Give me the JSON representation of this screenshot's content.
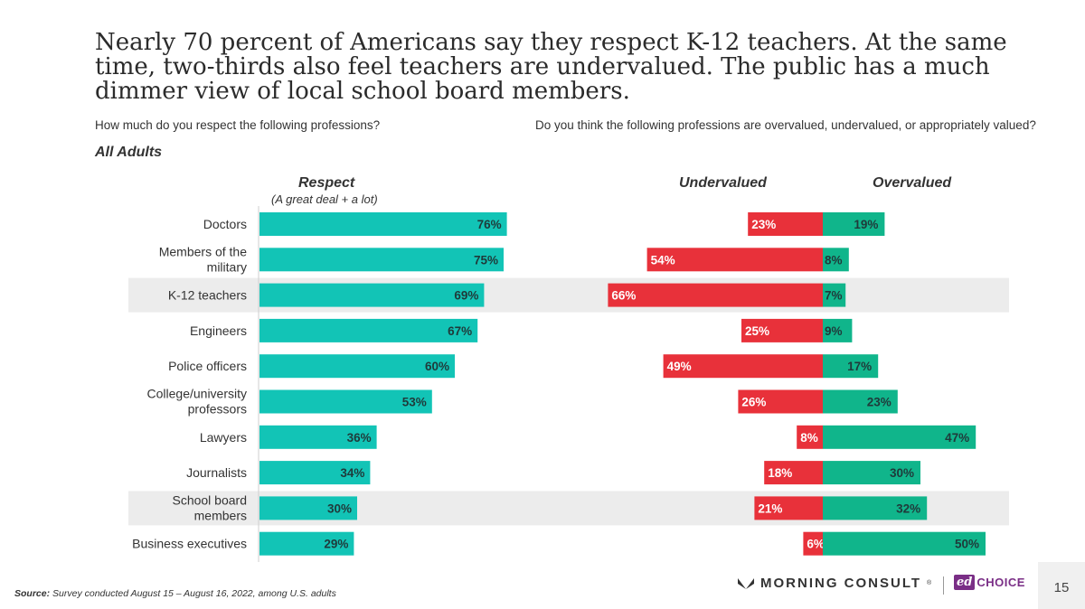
{
  "header": {
    "title": "Nearly 70 percent of Americans say they respect K-12 teachers. At the same time, two-thirds also feel teachers are undervalued. The public has a much dimmer view of local school board members.",
    "question_left": "How much do you respect the following professions?",
    "question_right": "Do you think the following professions are overvalued, undervalued, or appropriately valued?",
    "subgroup": "All Adults"
  },
  "chart_data": {
    "type": "bar",
    "categories": [
      "Doctors",
      "Members of the military",
      "K-12 teachers",
      "Engineers",
      "Police officers",
      "College/university professors",
      "Lawyers",
      "Journalists",
      "School board members",
      "Business executives"
    ],
    "category_lines": [
      [
        "Doctors"
      ],
      [
        "Members of the",
        "military"
      ],
      [
        "K-12 teachers"
      ],
      [
        "Engineers"
      ],
      [
        "Police officers"
      ],
      [
        "College/university",
        "professors"
      ],
      [
        "Lawyers"
      ],
      [
        "Journalists"
      ],
      [
        "School board",
        "members"
      ],
      [
        "Business executives"
      ]
    ],
    "highlighted": [
      false,
      false,
      true,
      false,
      false,
      false,
      false,
      false,
      true,
      false
    ],
    "series": [
      {
        "name": "Respect",
        "subtitle": "(A great deal + a lot)",
        "color": "#12c4b6",
        "values": [
          76,
          75,
          69,
          67,
          60,
          53,
          36,
          34,
          30,
          29
        ]
      },
      {
        "name": "Undervalued",
        "color": "#e8313a",
        "values": [
          23,
          54,
          66,
          25,
          49,
          26,
          8,
          18,
          21,
          6
        ]
      },
      {
        "name": "Overvalued",
        "color": "#10b58b",
        "values": [
          19,
          8,
          7,
          9,
          17,
          23,
          47,
          30,
          32,
          50
        ]
      }
    ],
    "unit": "%"
  },
  "footer": {
    "source_label": "Source:",
    "source_text": " Survey conducted August 15 – August 16, 2022, among U.S. adults",
    "brand": "MORNING CONSULT",
    "brand_mark": "®",
    "partner_badge": "ed",
    "partner_text": "CHOICE",
    "page_number": "15"
  },
  "colors": {
    "respect": "#12c4b6",
    "undervalued": "#e8313a",
    "overvalued": "#10b58b",
    "highlight_row": "#ececec"
  }
}
